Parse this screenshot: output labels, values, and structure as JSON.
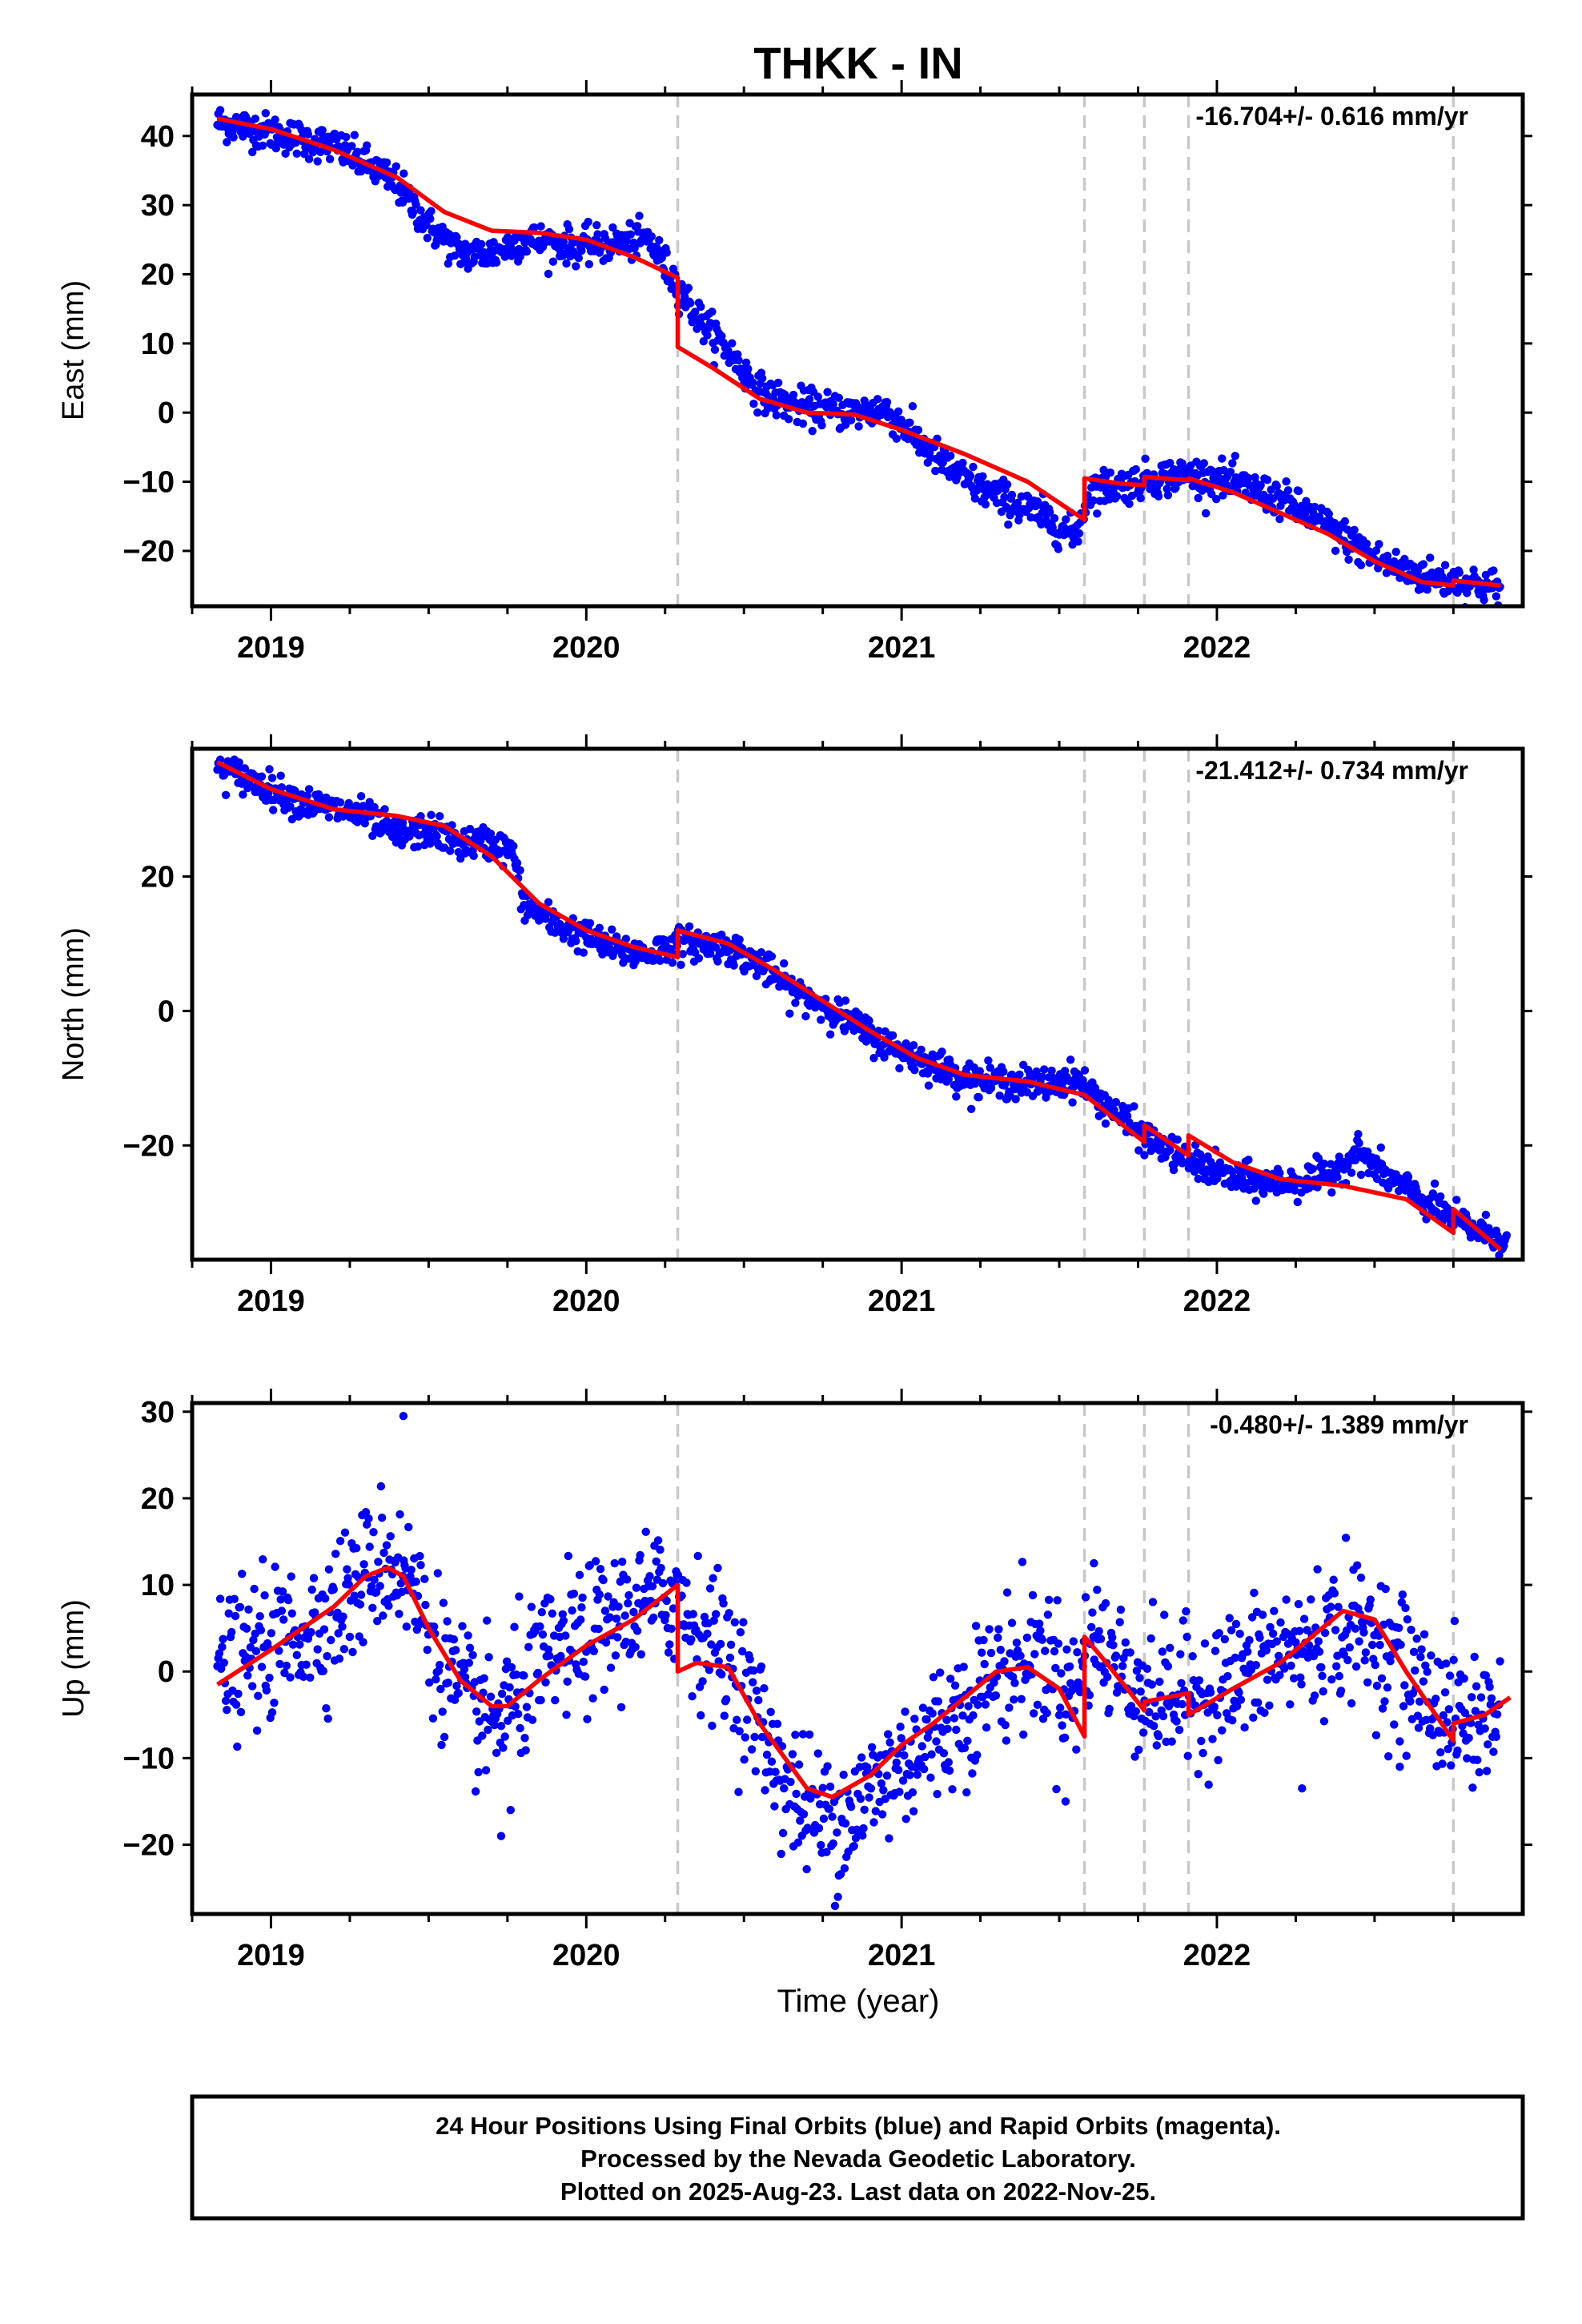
{
  "title": "THKK - IN",
  "xlabel": "Time (year)",
  "footer": {
    "line1": "24 Hour Positions Using Final Orbits (blue) and Rapid Orbits (magenta).",
    "line2": "Processed by the Nevada Geodetic Laboratory.",
    "line3": "Plotted on 2025-Aug-23. Last data on 2022-Nov-25."
  },
  "colors": {
    "points": "#0000ff",
    "model": "#ff0000",
    "breaks": "#c8c8c8",
    "frame": "#000000"
  },
  "chart_data": [
    {
      "type": "scatter",
      "component": "east",
      "ylabel": "East (mm)",
      "rate_label": "-16.704+/- 0.616 mm/yr",
      "xlim": [
        2018.75,
        2022.97
      ],
      "ylim": [
        -28,
        46
      ],
      "xticks": [
        2019,
        2020,
        2021,
        2022
      ],
      "yticks": [
        -20,
        -10,
        0,
        10,
        20,
        30,
        40
      ],
      "breaks": [
        2020.29,
        2021.58,
        2021.77,
        2021.91,
        2022.75
      ],
      "model": {
        "name": "model",
        "x": [
          2018.83,
          2019.0,
          2019.2,
          2019.4,
          2019.55,
          2019.7,
          2019.85,
          2020.0,
          2020.15,
          2020.29,
          2020.29,
          2020.4,
          2020.55,
          2020.7,
          2020.85,
          2021.0,
          2021.2,
          2021.4,
          2021.58,
          2021.58,
          2021.7,
          2021.77,
          2021.77,
          2021.91,
          2021.91,
          2022.05,
          2022.2,
          2022.35,
          2022.5,
          2022.65,
          2022.75,
          2022.75,
          2022.9
        ],
        "y": [
          42.5,
          41.0,
          38.0,
          34.0,
          29.0,
          26.3,
          26.0,
          25.0,
          22.5,
          19.5,
          9.5,
          6.5,
          2.0,
          0.0,
          -0.3,
          -2.5,
          -6.0,
          -10.0,
          -15.5,
          -9.5,
          -10.3,
          -10.5,
          -9.3,
          -9.8,
          -9.5,
          -11.5,
          -14.5,
          -17.5,
          -21.5,
          -24.5,
          -25.0,
          -24.3,
          -25.0
        ]
      },
      "points": {
        "name": "daily positions",
        "x": [
          2018.83,
          2018.9,
          2019.0,
          2019.1,
          2019.2,
          2019.3,
          2019.4,
          2019.5,
          2019.6,
          2019.7,
          2019.8,
          2019.9,
          2020.0,
          2020.1,
          2020.2,
          2020.28,
          2020.35,
          2020.45,
          2020.55,
          2020.65,
          2020.75,
          2020.85,
          2020.95,
          2021.05,
          2021.15,
          2021.25,
          2021.35,
          2021.45,
          2021.55,
          2021.6,
          2021.7,
          2021.8,
          2021.9,
          2022.0,
          2022.1,
          2022.2,
          2022.3,
          2022.4,
          2022.5,
          2022.6,
          2022.7,
          2022.8,
          2022.9
        ],
        "y": [
          42.0,
          41.5,
          40.5,
          39.5,
          38.5,
          36.0,
          33.0,
          27.0,
          23.0,
          23.0,
          25.0,
          24.5,
          24.0,
          24.5,
          25.0,
          19.0,
          14.0,
          9.0,
          3.0,
          1.0,
          0.5,
          0.0,
          0.5,
          -4.0,
          -8.0,
          -11.0,
          -13.0,
          -15.0,
          -18.0,
          -11.0,
          -10.5,
          -9.5,
          -9.0,
          -9.5,
          -11.0,
          -12.5,
          -15.0,
          -18.0,
          -21.0,
          -23.0,
          -24.0,
          -24.5,
          -25.5
        ],
        "noise": 1.3
      }
    },
    {
      "type": "scatter",
      "component": "north",
      "ylabel": "North (mm)",
      "rate_label": "-21.412+/- 0.734 mm/yr",
      "xlim": [
        2018.75,
        2022.97
      ],
      "ylim": [
        -37,
        39
      ],
      "xticks": [
        2019,
        2020,
        2021,
        2022
      ],
      "yticks": [
        -20,
        0,
        20
      ],
      "breaks": [
        2020.29,
        2021.58,
        2021.77,
        2021.91,
        2022.75
      ],
      "model": {
        "name": "model",
        "x": [
          2018.83,
          2019.0,
          2019.2,
          2019.4,
          2019.55,
          2019.7,
          2019.85,
          2020.0,
          2020.15,
          2020.29,
          2020.29,
          2020.45,
          2020.6,
          2020.75,
          2020.9,
          2021.05,
          2021.2,
          2021.4,
          2021.58,
          2021.77,
          2021.77,
          2021.91,
          2021.91,
          2022.05,
          2022.2,
          2022.4,
          2022.6,
          2022.75,
          2022.75,
          2022.9
        ],
        "y": [
          37.0,
          33.0,
          30.0,
          29.0,
          27.5,
          23.0,
          16.0,
          12.0,
          9.5,
          8.0,
          12.0,
          10.0,
          6.0,
          1.5,
          -3.0,
          -7.0,
          -9.5,
          -10.5,
          -12.5,
          -19.5,
          -17.0,
          -21.5,
          -18.5,
          -22.5,
          -25.0,
          -26.0,
          -28.0,
          -33.0,
          -29.5,
          -35.5
        ]
      },
      "points": {
        "name": "daily positions",
        "x": [
          2018.83,
          2018.9,
          2019.0,
          2019.1,
          2019.2,
          2019.3,
          2019.4,
          2019.5,
          2019.6,
          2019.7,
          2019.77,
          2019.8,
          2019.9,
          2020.0,
          2020.1,
          2020.2,
          2020.28,
          2020.35,
          2020.45,
          2020.55,
          2020.65,
          2020.75,
          2020.85,
          2020.95,
          2021.05,
          2021.15,
          2021.25,
          2021.35,
          2021.45,
          2021.55,
          2021.65,
          2021.75,
          2021.85,
          2021.95,
          2022.05,
          2022.15,
          2022.25,
          2022.35,
          2022.45,
          2022.55,
          2022.65,
          2022.75,
          2022.85,
          2022.92
        ],
        "y": [
          36.0,
          35.0,
          33.0,
          31.0,
          30.0,
          29.0,
          26.0,
          27.0,
          25.0,
          25.0,
          23.5,
          16.0,
          13.0,
          11.0,
          9.0,
          8.5,
          10.0,
          10.0,
          9.5,
          7.0,
          3.0,
          1.0,
          -2.0,
          -5.0,
          -7.0,
          -9.0,
          -10.5,
          -10.5,
          -11.0,
          -10.0,
          -14.0,
          -18.0,
          -21.0,
          -23.0,
          -25.0,
          -25.5,
          -25.5,
          -24.5,
          -21.0,
          -25.0,
          -28.0,
          -31.0,
          -33.0,
          -34.0
        ],
        "noise": 1.2
      }
    },
    {
      "type": "scatter",
      "component": "up",
      "ylabel": "Up (mm)",
      "rate_label": "-0.480+/- 1.389 mm/yr",
      "xlim": [
        2018.75,
        2022.97
      ],
      "ylim": [
        -28,
        31
      ],
      "xticks": [
        2019,
        2020,
        2021,
        2022
      ],
      "yticks": [
        -20,
        -10,
        0,
        10,
        20,
        30
      ],
      "breaks": [
        2020.29,
        2021.58,
        2021.77,
        2021.91,
        2022.75
      ],
      "model": {
        "name": "model",
        "x": [
          2018.83,
          2019.0,
          2019.2,
          2019.3,
          2019.37,
          2019.42,
          2019.5,
          2019.6,
          2019.7,
          2019.75,
          2019.85,
          2020.0,
          2020.15,
          2020.29,
          2020.29,
          2020.35,
          2020.45,
          2020.55,
          2020.7,
          2020.78,
          2020.9,
          2021.0,
          2021.1,
          2021.2,
          2021.3,
          2021.4,
          2021.5,
          2021.58,
          2021.58,
          2021.65,
          2021.77,
          2021.77,
          2021.84,
          2021.91,
          2021.91,
          2022.05,
          2022.2,
          2022.3,
          2022.4,
          2022.5,
          2022.6,
          2022.75,
          2022.75,
          2022.85,
          2022.93
        ],
        "y": [
          -1.5,
          2.5,
          7.5,
          11.0,
          12.0,
          11.0,
          5.0,
          -1.0,
          -4.0,
          -4.0,
          -1.0,
          3.0,
          6.0,
          10.0,
          0.0,
          1.0,
          0.5,
          -6.0,
          -13.5,
          -14.5,
          -12.0,
          -8.5,
          -6.0,
          -3.0,
          0.0,
          0.5,
          -2.0,
          -7.5,
          4.0,
          1.0,
          -4.5,
          -3.5,
          -3.0,
          -2.5,
          -5.0,
          -2.0,
          1.0,
          4.0,
          7.0,
          6.0,
          0.0,
          -8.0,
          -6.0,
          -5.0,
          -3.0
        ]
      },
      "points": {
        "name": "daily positions",
        "x": [
          2018.83,
          2018.95,
          2019.05,
          2019.15,
          2019.25,
          2019.35,
          2019.42,
          2019.5,
          2019.6,
          2019.7,
          2019.8,
          2019.9,
          2020.0,
          2020.1,
          2020.2,
          2020.28,
          2020.35,
          2020.45,
          2020.55,
          2020.65,
          2020.75,
          2020.85,
          2020.95,
          2021.05,
          2021.15,
          2021.25,
          2021.35,
          2021.45,
          2021.55,
          2021.6,
          2021.7,
          2021.8,
          2021.9,
          2022.0,
          2022.1,
          2022.2,
          2022.3,
          2022.4,
          2022.5,
          2022.6,
          2022.7,
          2022.8,
          2022.9
        ],
        "y": [
          0.0,
          2.0,
          4.0,
          5.5,
          9.0,
          13.0,
          12.0,
          5.0,
          -3.0,
          -6.0,
          -2.0,
          2.0,
          4.0,
          6.0,
          8.0,
          9.0,
          5.0,
          2.0,
          -6.0,
          -14.0,
          -17.0,
          -16.0,
          -12.0,
          -9.0,
          -6.0,
          -2.0,
          1.0,
          2.0,
          -3.0,
          4.0,
          0.0,
          -3.0,
          -3.0,
          -2.0,
          0.0,
          2.0,
          3.0,
          5.0,
          4.0,
          0.0,
          -4.0,
          -6.0,
          -5.0
        ],
        "noise": 4.0
      },
      "outliers": {
        "name": "isolated points",
        "x": [
          2019.42,
          2019.73,
          2019.76,
          2021.52,
          2021.61,
          2022.27,
          2022.58
        ],
        "y": [
          29.5,
          -19.0,
          -16.0,
          -15.0,
          12.5,
          -13.5,
          -11.0
        ]
      }
    }
  ]
}
